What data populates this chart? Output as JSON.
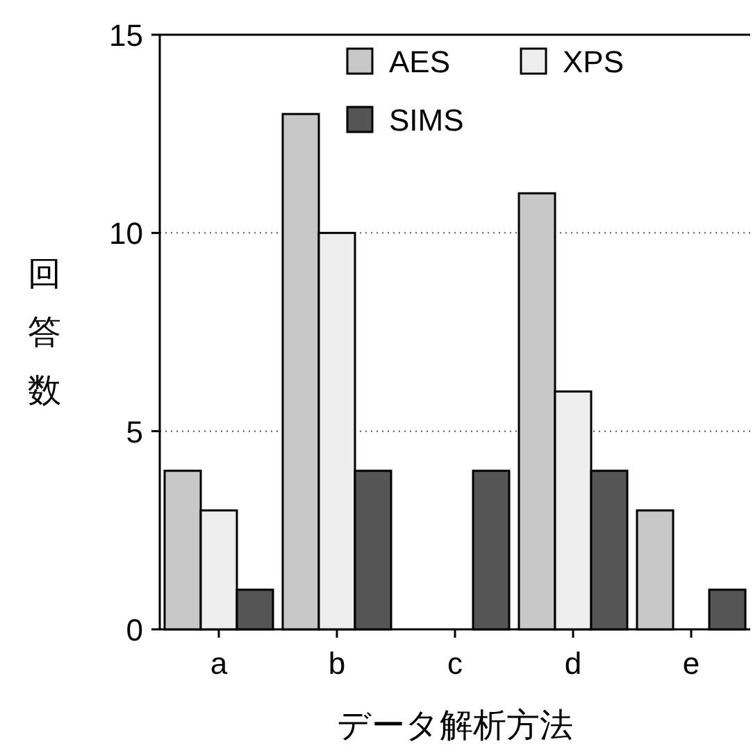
{
  "chart_data": {
    "type": "bar",
    "xlabel": "データ解析方法",
    "ylabel": "回答数",
    "categories": [
      "a",
      "b",
      "c",
      "d",
      "e"
    ],
    "series": [
      {
        "name": "AES",
        "color": "#c8c8c8",
        "values": [
          4,
          13,
          null,
          11,
          3
        ]
      },
      {
        "name": "XPS",
        "color": "#eeeeee",
        "values": [
          3,
          10,
          null,
          6,
          null
        ]
      },
      {
        "name": "SIMS",
        "color": "#555555",
        "values": [
          1,
          4,
          4,
          4,
          1
        ]
      }
    ],
    "ylim": [
      0,
      15
    ],
    "yticks": [
      0,
      5,
      10,
      15
    ],
    "grid": "y",
    "legend": "top right"
  }
}
